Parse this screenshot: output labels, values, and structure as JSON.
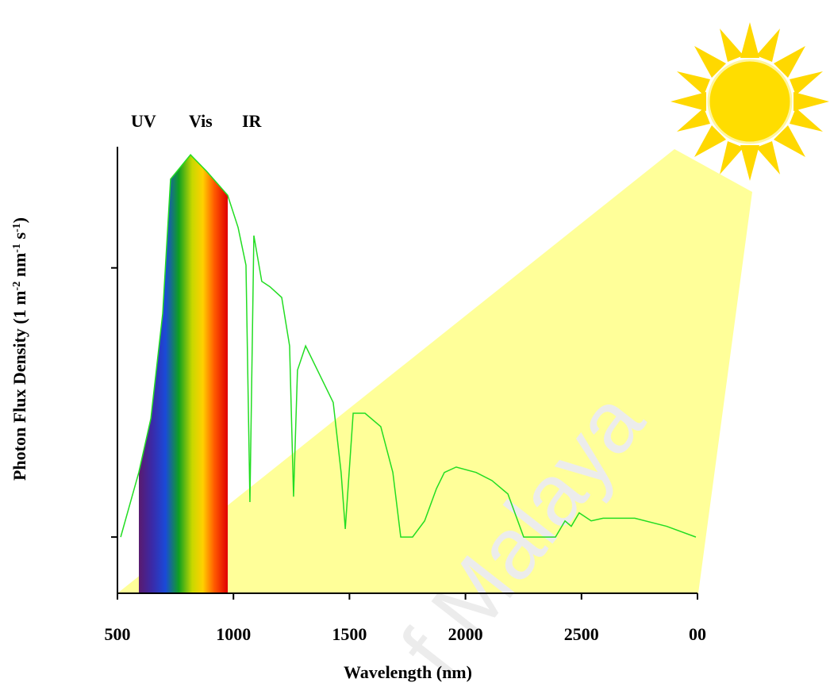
{
  "chart_data": {
    "type": "line",
    "region_labels": [
      "UV",
      "Vis",
      "IR"
    ],
    "x_label": "Wavelength (nm)",
    "y_label": [
      "Photon Flux Density (1 m",
      "-2",
      " nm",
      "-1",
      " s",
      "-1",
      ")"
    ],
    "watermark": "f Malaya",
    "xlim": [
      500,
      3000
    ],
    "xticks": [
      500,
      1000,
      1500,
      2000,
      2500,
      {
        "value": 3000,
        "label": "00"
      }
    ],
    "ylim": [
      -0.2,
      1.45
    ],
    "yticks": [
      0,
      1
    ],
    "series": [
      {
        "color": "#22dd22",
        "x": [
          514,
          592,
          644,
          695,
          729,
          815,
          883,
          975,
          1020,
          1054,
          1071,
          1088,
          1122,
          1157,
          1208,
          1242,
          1259,
          1276,
          1311,
          1362,
          1430,
          1464,
          1482,
          1516,
          1567,
          1635,
          1687,
          1721,
          1772,
          1824,
          1875,
          1909,
          1960,
          2046,
          2114,
          2183,
          2251,
          2388,
          2429,
          2456,
          2490,
          2542,
          2593,
          2730,
          2867,
          2993
        ],
        "values": [
          0,
          0.24,
          0.44,
          0.83,
          1.33,
          1.42,
          1.36,
          1.27,
          1.15,
          1.01,
          0.13,
          1.12,
          0.95,
          0.93,
          0.89,
          0.71,
          0.15,
          0.62,
          0.71,
          0.62,
          0.5,
          0.24,
          0.03,
          0.46,
          0.46,
          0.41,
          0.24,
          0,
          0,
          0.06,
          0.18,
          0.24,
          0.26,
          0.24,
          0.21,
          0.16,
          0,
          0,
          0.06,
          0.04,
          0.09,
          0.06,
          0.07,
          0.07,
          0.04,
          0
        ]
      }
    ]
  }
}
